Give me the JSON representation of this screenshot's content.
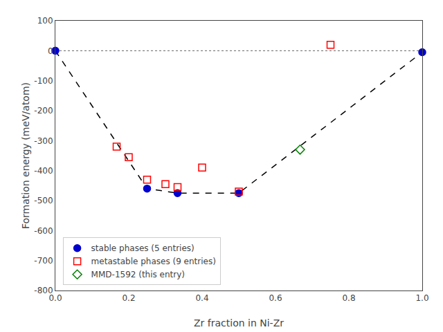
{
  "chart_data": {
    "type": "scatter",
    "xlabel": "Zr fraction in Ni-Zr",
    "ylabel": "Formation energy (meV/atom)",
    "xlim": [
      0.0,
      1.0
    ],
    "ylim": [
      -800,
      100
    ],
    "xticks": [
      {
        "value": 0.0,
        "label": "0.0"
      },
      0.2,
      0.4,
      0.6,
      0.8,
      {
        "value": 1.0,
        "label": "1.0"
      }
    ],
    "yticks": [
      100,
      0,
      -100,
      -200,
      -300,
      -400,
      -500,
      -600,
      -700,
      -800
    ],
    "grid": false,
    "legend": "lower left",
    "series": [
      {
        "type": "hline",
        "values": [
          0.0
        ],
        "color": "#808080",
        "line_style": "dotted"
      },
      {
        "type": "line",
        "x": [
          0.0,
          0.25,
          0.333,
          0.5,
          1.0
        ],
        "values": [
          0.0,
          -460.0,
          -475.0,
          -475.0,
          -5.0
        ],
        "color": "#000000",
        "line_style": "dashed"
      },
      {
        "type": "scatter",
        "name": "stable phases (5 entries)",
        "x": [
          0.0,
          0.25,
          0.333,
          0.5,
          1.0
        ],
        "values": [
          0.0,
          -460.0,
          -475.0,
          -475.0,
          -5.0
        ],
        "color": "#0000cd",
        "marker": "circle"
      },
      {
        "type": "scatter",
        "name": "metastable phases (9 entries)",
        "x": [
          0.167,
          0.2,
          0.25,
          0.3,
          0.333,
          0.4,
          0.5,
          0.75
        ],
        "values": [
          -320.0,
          -355.0,
          -430.0,
          -445.0,
          -455.0,
          -390.0,
          -470.0,
          20.0
        ],
        "color": "#ff0000",
        "marker": "square-open"
      },
      {
        "type": "scatter",
        "name": "MMD-1592 (this entry)",
        "x": [
          0.667
        ],
        "values": [
          -330.0
        ],
        "color": "#008000",
        "marker": "diamond-open"
      }
    ]
  }
}
